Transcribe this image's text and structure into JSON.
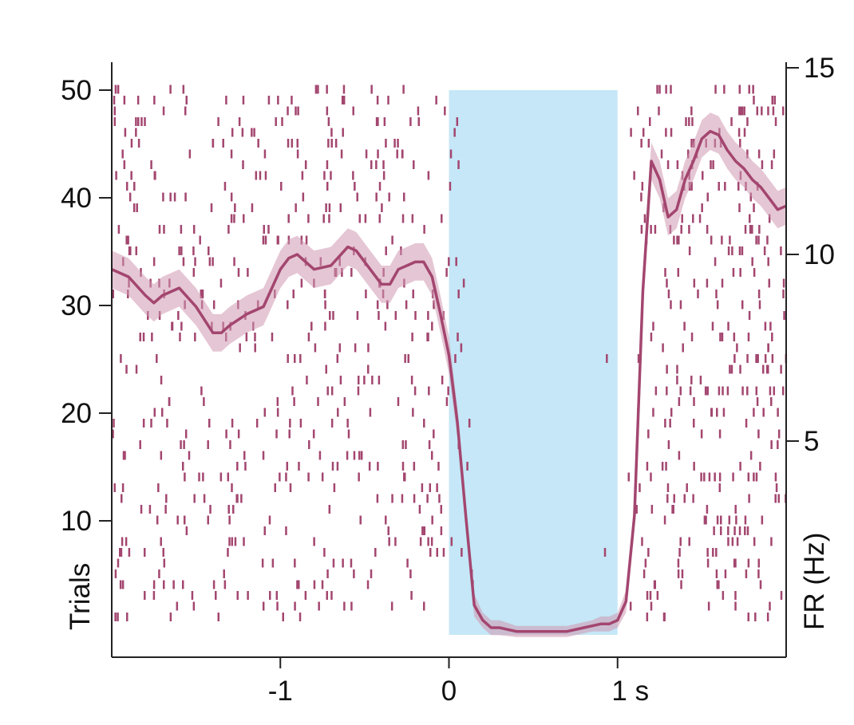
{
  "chart_data": {
    "type": "raster+line",
    "xlim": [
      -2,
      2
    ],
    "x_ticks": [
      {
        "value": -1,
        "label": "-1"
      },
      {
        "value": 0,
        "label": "0"
      },
      {
        "value": 1,
        "label": "1 s"
      }
    ],
    "left_axis": {
      "label": "Trials",
      "ylim": [
        0,
        51
      ],
      "ticks": [
        {
          "value": 10,
          "label": "10"
        },
        {
          "value": 20,
          "label": "20"
        },
        {
          "value": 30,
          "label": "30"
        },
        {
          "value": 40,
          "label": "40"
        },
        {
          "value": 50,
          "label": "50"
        }
      ]
    },
    "right_axis": {
      "label": "FR (Hz)",
      "ylim": [
        -1,
        15
      ],
      "ticks": [
        {
          "value": 5,
          "label": "5"
        },
        {
          "value": 10,
          "label": "10"
        },
        {
          "value": 15,
          "label": "15"
        }
      ]
    },
    "stimulus_window": {
      "start": 0,
      "end": 1,
      "trial_range": [
        0,
        50
      ],
      "color": "#c5e7f7"
    },
    "raster": {
      "n_trials": 50,
      "color": "#a3466f",
      "approx_spikes_per_trial": 26
    },
    "firing_rate": {
      "color": "#a3466f",
      "band_color": "#cf97b1",
      "t": [
        -2.0,
        -1.9,
        -1.8,
        -1.75,
        -1.7,
        -1.6,
        -1.5,
        -1.4,
        -1.35,
        -1.3,
        -1.2,
        -1.1,
        -1.0,
        -0.95,
        -0.9,
        -0.8,
        -0.7,
        -0.6,
        -0.55,
        -0.5,
        -0.4,
        -0.35,
        -0.3,
        -0.2,
        -0.15,
        -0.1,
        -0.05,
        0.0,
        0.05,
        0.1,
        0.15,
        0.2,
        0.25,
        0.3,
        0.4,
        0.5,
        0.6,
        0.7,
        0.8,
        0.85,
        0.9,
        0.95,
        1.0,
        1.05,
        1.1,
        1.15,
        1.2,
        1.25,
        1.3,
        1.35,
        1.4,
        1.45,
        1.5,
        1.55,
        1.6,
        1.65,
        1.7,
        1.75,
        1.8,
        1.85,
        1.9,
        1.95,
        2.0
      ],
      "rate": [
        9.6,
        9.4,
        8.9,
        8.7,
        8.9,
        9.1,
        8.6,
        7.9,
        7.9,
        8.1,
        8.4,
        8.6,
        9.6,
        9.9,
        10.0,
        9.6,
        9.7,
        10.2,
        10.1,
        9.8,
        9.2,
        9.2,
        9.6,
        9.8,
        9.8,
        9.4,
        8.4,
        7.3,
        5.5,
        3.0,
        0.6,
        0.2,
        0.0,
        0.0,
        -0.1,
        -0.1,
        -0.1,
        -0.1,
        0.0,
        0.05,
        0.1,
        0.1,
        0.2,
        0.7,
        3.0,
        9.0,
        12.5,
        12.0,
        11.0,
        11.2,
        12.0,
        12.5,
        13.1,
        13.3,
        13.2,
        12.8,
        12.5,
        12.3,
        12.0,
        11.8,
        11.5,
        11.2,
        11.3
      ],
      "sem": [
        0.5,
        0.5,
        0.5,
        0.5,
        0.5,
        0.5,
        0.5,
        0.5,
        0.5,
        0.5,
        0.5,
        0.5,
        0.5,
        0.5,
        0.5,
        0.5,
        0.5,
        0.5,
        0.5,
        0.5,
        0.5,
        0.5,
        0.5,
        0.5,
        0.5,
        0.5,
        0.5,
        0.5,
        0.4,
        0.3,
        0.3,
        0.2,
        0.2,
        0.2,
        0.15,
        0.15,
        0.15,
        0.15,
        0.15,
        0.15,
        0.2,
        0.2,
        0.2,
        0.3,
        0.4,
        0.5,
        0.5,
        0.5,
        0.5,
        0.5,
        0.5,
        0.5,
        0.5,
        0.5,
        0.5,
        0.5,
        0.5,
        0.5,
        0.5,
        0.5,
        0.5,
        0.5,
        0.5
      ]
    }
  }
}
